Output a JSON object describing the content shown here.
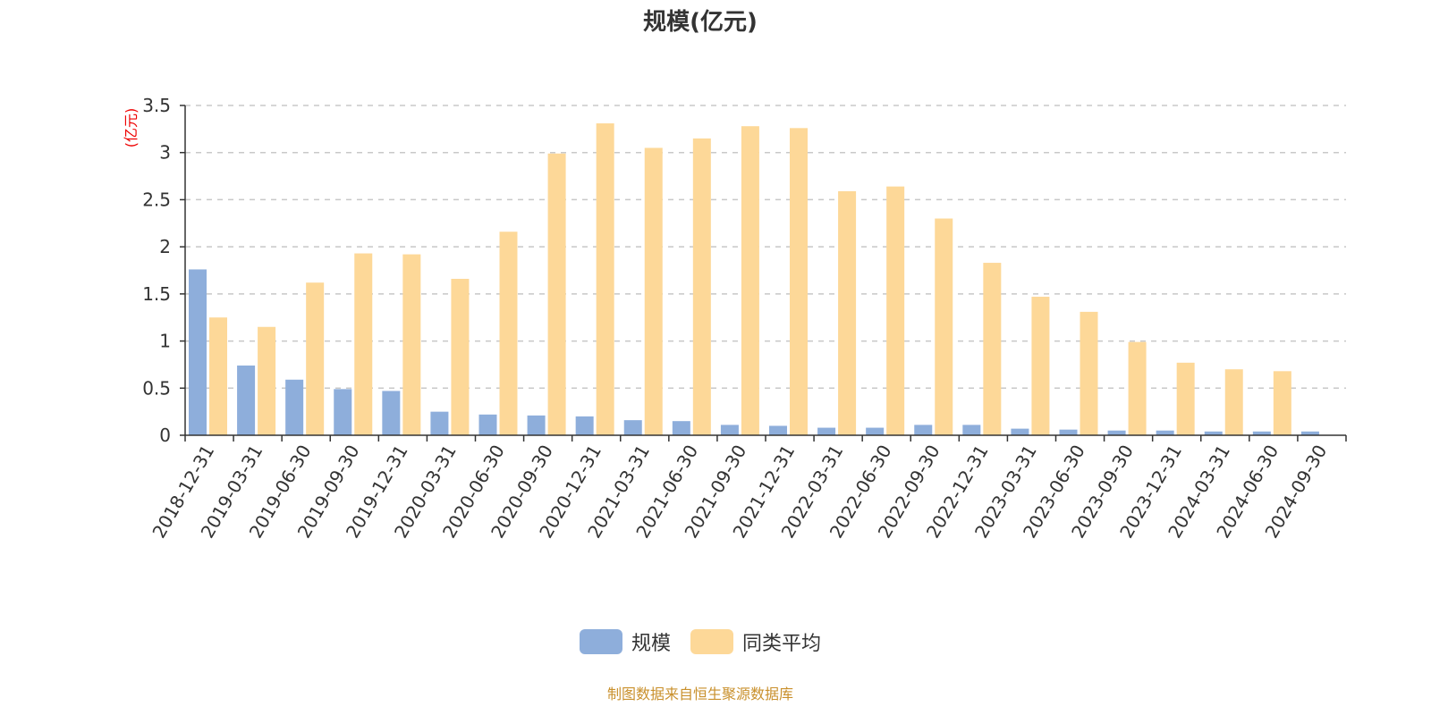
{
  "chart_data": {
    "type": "bar",
    "title": "规模(亿元)",
    "ylabel": "(亿元)",
    "xlabel": "",
    "ylim": [
      0,
      3.5
    ],
    "yticks": [
      "0",
      "0.5",
      "1",
      "1.5",
      "2",
      "2.5",
      "3",
      "3.5"
    ],
    "grid": true,
    "legend_position": "bottom-center",
    "categories": [
      "2018-12-31",
      "2019-03-31",
      "2019-06-30",
      "2019-09-30",
      "2019-12-31",
      "2020-03-31",
      "2020-06-30",
      "2020-09-30",
      "2020-12-31",
      "2021-03-31",
      "2021-06-30",
      "2021-09-30",
      "2021-12-31",
      "2022-03-31",
      "2022-06-30",
      "2022-09-30",
      "2022-12-31",
      "2023-03-31",
      "2023-06-30",
      "2023-09-30",
      "2023-12-31",
      "2024-03-31",
      "2024-06-30",
      "2024-09-30"
    ],
    "series": [
      {
        "name": "规模",
        "color": "#8eaedb",
        "values": [
          1.76,
          0.74,
          0.59,
          0.49,
          0.47,
          0.25,
          0.22,
          0.21,
          0.2,
          0.16,
          0.15,
          0.11,
          0.1,
          0.08,
          0.08,
          0.11,
          0.11,
          0.07,
          0.06,
          0.05,
          0.05,
          0.04,
          0.04,
          0.04
        ]
      },
      {
        "name": "同类平均",
        "color": "#fdd898",
        "values": [
          1.25,
          1.15,
          1.62,
          1.93,
          1.92,
          1.66,
          2.16,
          2.99,
          3.31,
          3.05,
          3.15,
          3.28,
          3.26,
          2.59,
          2.64,
          2.3,
          1.83,
          1.47,
          1.31,
          0.99,
          0.77,
          0.7,
          0.68,
          null
        ]
      }
    ]
  },
  "source_note": "制图数据来自恒生聚源数据库"
}
